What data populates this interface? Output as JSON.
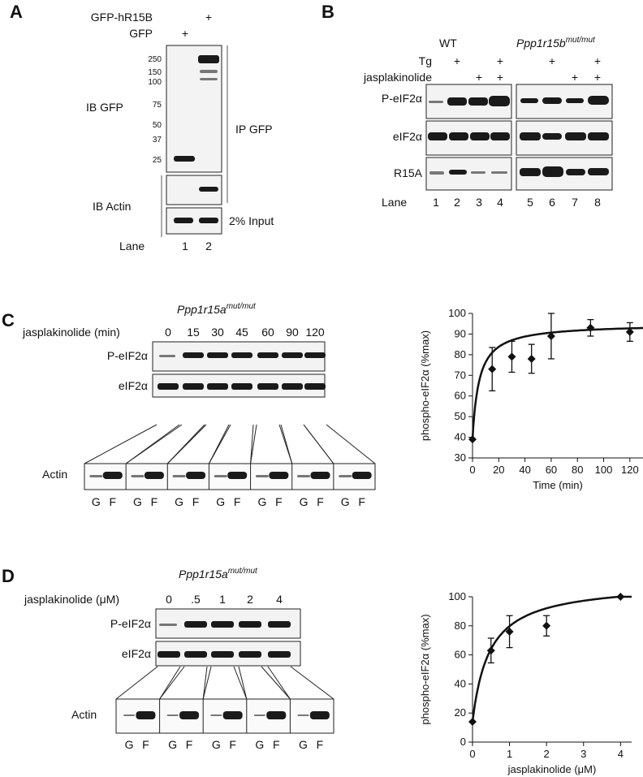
{
  "panelA": {
    "letter": "A",
    "rows": [
      {
        "label": "GFP-hR15B",
        "marks": [
          "",
          "+"
        ]
      },
      {
        "label": "GFP",
        "marks": [
          "+",
          ""
        ]
      }
    ],
    "mw_markers": [
      "250",
      "150",
      "100",
      "75",
      "50",
      "37",
      "25"
    ],
    "ib_gfp": "IB GFP",
    "ib_actin": "IB Actin",
    "ip_gfp": "IP GFP",
    "input": "2% Input",
    "lane_label": "Lane",
    "lanes": [
      "1",
      "2"
    ]
  },
  "panelB": {
    "letter": "B",
    "group_wt": "WT",
    "group_mut_base": "Ppp1r15b",
    "group_mut_sup": "mut/mut",
    "rows": [
      {
        "label": "Tg",
        "marks": [
          "",
          "+",
          "",
          "+",
          "",
          "+",
          "",
          "+"
        ]
      },
      {
        "label": "jasplakinolide",
        "marks": [
          "",
          "",
          "+",
          "+",
          "",
          "",
          "+",
          "+"
        ]
      }
    ],
    "blots": [
      "P-eIF2α",
      "eIF2α",
      "R15A"
    ],
    "lane_label": "Lane",
    "lanes": [
      "1",
      "2",
      "3",
      "4",
      "5",
      "6",
      "7",
      "8"
    ]
  },
  "panelC": {
    "letter": "C",
    "genotype_base": "Ppp1r15a",
    "genotype_sup": "mut/mut",
    "condition_label": "jasplakinolide (min)",
    "conditions": [
      "0",
      "15",
      "30",
      "45",
      "60",
      "90",
      "120"
    ],
    "blots": [
      "P-eIF2α",
      "eIF2α"
    ],
    "actin_label": "Actin",
    "fractions": [
      "G",
      "F"
    ]
  },
  "panelD": {
    "letter": "D",
    "genotype_base": "Ppp1r15a",
    "genotype_sup": "mut/mut",
    "condition_label": "jasplakinolide (μM)",
    "conditions": [
      "0",
      ".5",
      "1",
      "2",
      "4"
    ],
    "blots": [
      "P-eIF2α",
      "eIF2α"
    ],
    "actin_label": "Actin",
    "fractions": [
      "G",
      "F"
    ]
  },
  "chart_data": [
    {
      "type": "scatter",
      "xlabel": "Time (min)",
      "ylabel": "phospho-eIF2α (%max)",
      "xlim": [
        0,
        130
      ],
      "ylim": [
        30,
        100
      ],
      "xticks": [
        0,
        20,
        40,
        60,
        80,
        100,
        120
      ],
      "yticks": [
        30,
        40,
        50,
        60,
        70,
        80,
        90,
        100
      ],
      "x": [
        0,
        15,
        30,
        45,
        60,
        90,
        120
      ],
      "y": [
        39,
        73,
        79,
        78,
        89,
        93,
        91
      ],
      "error": [
        0,
        10.5,
        7.5,
        7,
        11,
        4,
        4.5
      ],
      "fit": {
        "y0": 39,
        "amplitude": 56,
        "k": 5
      },
      "grid": false
    },
    {
      "type": "scatter",
      "xlabel": "jasplakinolide (μM)",
      "ylabel": "phospho-eIF2α (%max)",
      "xlim": [
        0,
        4.3
      ],
      "ylim": [
        0,
        100
      ],
      "xticks": [
        0,
        1,
        2,
        3,
        4
      ],
      "yticks": [
        0,
        20,
        40,
        60,
        80,
        100
      ],
      "x": [
        0,
        0.5,
        1,
        2,
        4
      ],
      "y": [
        14,
        63,
        76,
        80,
        100
      ],
      "error": [
        0,
        8.5,
        11,
        7,
        0
      ],
      "fit": {
        "y0": 14,
        "amplitude": 96,
        "k": 0.46
      },
      "grid": false
    }
  ]
}
